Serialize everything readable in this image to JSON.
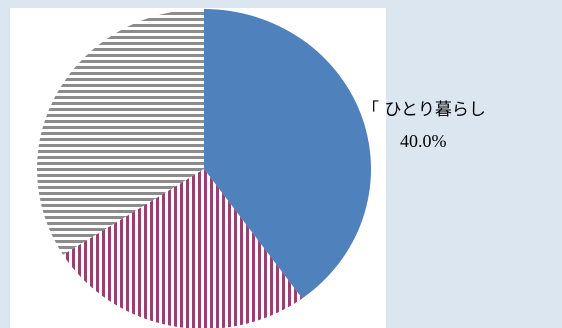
{
  "chart_data": {
    "type": "pie",
    "categories": [
      "「 ひとり暮らし",
      null,
      null
    ],
    "values": [
      40.0,
      26,
      34
    ],
    "value_labels": [
      "40.0%",
      null,
      null
    ],
    "colors": [
      "#4f81bd",
      "#9b3f72",
      "#8c8c8c"
    ],
    "patterns": [
      "solid",
      "vertical",
      "horizontal"
    ]
  }
}
